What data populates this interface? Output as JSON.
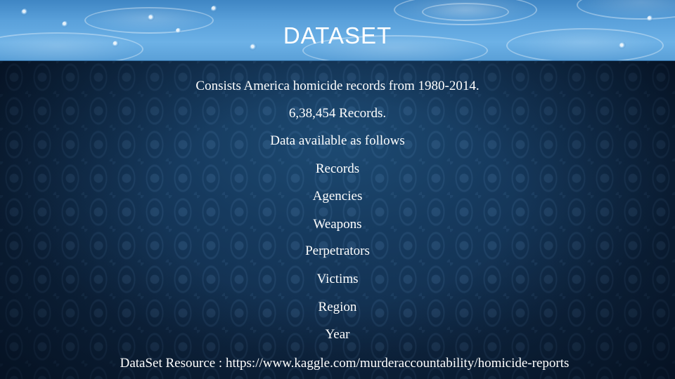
{
  "slide": {
    "title": "DATASET",
    "lines": [
      "Consists America homicide records from 1980-2014.",
      "6,38,454  Records.",
      "Data available as follows",
      "Records",
      "Agencies",
      "Weapons",
      "Perpetrators",
      "Victims",
      "Region",
      "Year"
    ],
    "footer": "DataSet Resource  :  https://www.kaggle.com/murderaccountability/homicide-reports"
  }
}
